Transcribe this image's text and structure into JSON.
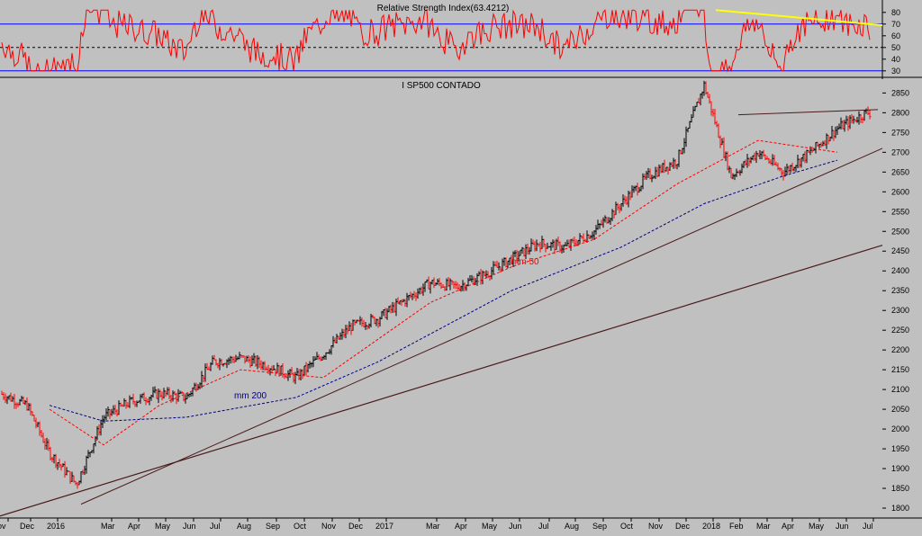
{
  "rsi_panel": {
    "title": "Relative Strength Index(63.4212)",
    "y_ticks": [
      30,
      40,
      50,
      60,
      70,
      80
    ],
    "upper_band": 70,
    "lower_band": 30,
    "midline": 50,
    "ylim": [
      26,
      86
    ]
  },
  "price_panel": {
    "title": "I SP500 CONTADO",
    "y_ticks": [
      1800,
      1850,
      1900,
      1950,
      2000,
      2050,
      2100,
      2150,
      2200,
      2250,
      2300,
      2350,
      2400,
      2450,
      2500,
      2550,
      2600,
      2650,
      2700,
      2750,
      2800,
      2850
    ],
    "ylim": [
      1775,
      2885
    ],
    "ma50_label": "mm 50",
    "ma200_label": "mm 200"
  },
  "x_axis": {
    "labels": [
      "ov",
      "Dec",
      "2016",
      "Mar",
      "Apr",
      "May",
      "Jun",
      "Jul",
      "Aug",
      "Sep",
      "Oct",
      "Nov",
      "Dec",
      "2017",
      "Mar",
      "Apr",
      "May",
      "Jun",
      "Jul",
      "Aug",
      "Sep",
      "Oct",
      "Nov",
      "Dec",
      "2018",
      "Feb",
      "Mar",
      "Apr",
      "May",
      "Jun",
      "Jul"
    ]
  },
  "colors": {
    "background": "#c0c0c0",
    "up_bar": "#000000",
    "down_bar": "#ff0000",
    "rsi_line": "#ff0000",
    "rsi_bands": "#0000ff",
    "rsi_trend": "#ffff00",
    "ma50": "#ff0000",
    "ma200": "#000080",
    "trendline": "#4a1a1a"
  },
  "chart_data": {
    "type": "line",
    "title": "I SP500 CONTADO",
    "ylim": [
      1775,
      2885
    ],
    "grid": false,
    "price_keypoints": {
      "x": [
        "2015-11",
        "2015-12",
        "2016-01",
        "2016-02",
        "2016-03",
        "2016-04",
        "2016-05",
        "2016-06",
        "2016-07",
        "2016-08",
        "2016-09",
        "2016-10",
        "2016-11",
        "2016-12",
        "2017-01",
        "2017-03",
        "2017-04",
        "2017-05",
        "2017-06",
        "2017-07",
        "2017-08",
        "2017-09",
        "2017-10",
        "2017-11",
        "2017-12",
        "2018-01",
        "2018-02",
        "2018-03",
        "2018-04",
        "2018-05",
        "2018-06",
        "2018-07"
      ],
      "close": [
        2090,
        2060,
        1940,
        1860,
        2030,
        2070,
        2090,
        2080,
        2170,
        2180,
        2160,
        2130,
        2190,
        2260,
        2280,
        2370,
        2360,
        2390,
        2430,
        2470,
        2460,
        2500,
        2570,
        2640,
        2680,
        2870,
        2640,
        2700,
        2650,
        2700,
        2760,
        2800
      ]
    },
    "series": [
      {
        "name": "mm 50",
        "x": [
          "2016-01",
          "2016-03",
          "2016-05",
          "2016-08",
          "2016-11",
          "2017-03",
          "2017-06",
          "2017-09",
          "2017-12",
          "2018-03",
          "2018-06"
        ],
        "values": [
          2050,
          1960,
          2060,
          2150,
          2130,
          2320,
          2410,
          2480,
          2620,
          2730,
          2700
        ]
      },
      {
        "name": "mm 200",
        "x": [
          "2016-01",
          "2016-03",
          "2016-06",
          "2016-10",
          "2017-01",
          "2017-06",
          "2017-10",
          "2018-01",
          "2018-04",
          "2018-06"
        ],
        "values": [
          2060,
          2020,
          2030,
          2080,
          2170,
          2350,
          2460,
          2570,
          2640,
          2680
        ]
      }
    ],
    "rsi": {
      "name": "Relative Strength Index",
      "last": 63.4212,
      "bands": [
        30,
        70
      ]
    }
  }
}
